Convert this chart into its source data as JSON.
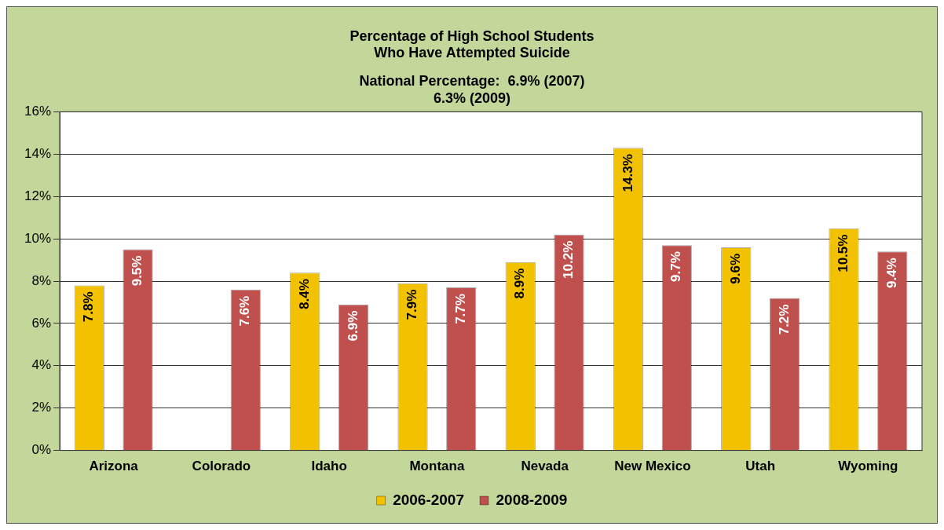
{
  "chart_data": {
    "type": "bar",
    "title": [
      "Percentage of High School Students",
      "Who Have Attempted Suicide"
    ],
    "subtitle": [
      "National Percentage:  6.9% (2007)",
      "6.3% (2009)"
    ],
    "categories": [
      "Arizona",
      "Colorado",
      "Idaho",
      "Montana",
      "Nevada",
      "New Mexico",
      "Utah",
      "Wyoming"
    ],
    "series": [
      {
        "name": "2006-2007",
        "color": "#f2c200",
        "values": [
          7.8,
          null,
          8.4,
          7.9,
          8.9,
          14.3,
          9.6,
          10.5
        ],
        "value_labels": [
          "7.8%",
          null,
          "8.4%",
          "7.9%",
          "8.9%",
          "14.3%",
          "9.6%",
          "10.5%"
        ]
      },
      {
        "name": "2008-2009",
        "color": "#c0504d",
        "values": [
          9.5,
          7.6,
          6.9,
          7.7,
          10.2,
          9.7,
          7.2,
          9.4
        ],
        "value_labels": [
          "9.5%",
          "7.6%",
          "6.9%",
          "7.7%",
          "10.2%",
          "9.7%",
          "7.2%",
          "9.4%"
        ]
      }
    ],
    "ylim": [
      0,
      16
    ],
    "yticks": [
      {
        "value": 0,
        "label": "0%"
      },
      {
        "value": 2,
        "label": "2%"
      },
      {
        "value": 4,
        "label": "4%"
      },
      {
        "value": 6,
        "label": "6%"
      },
      {
        "value": 8,
        "label": "8%"
      },
      {
        "value": 10,
        "label": "10%"
      },
      {
        "value": 12,
        "label": "12%"
      },
      {
        "value": 14,
        "label": "14%"
      },
      {
        "value": 16,
        "label": "16%"
      }
    ],
    "grid": "y",
    "legend": "bottom"
  }
}
